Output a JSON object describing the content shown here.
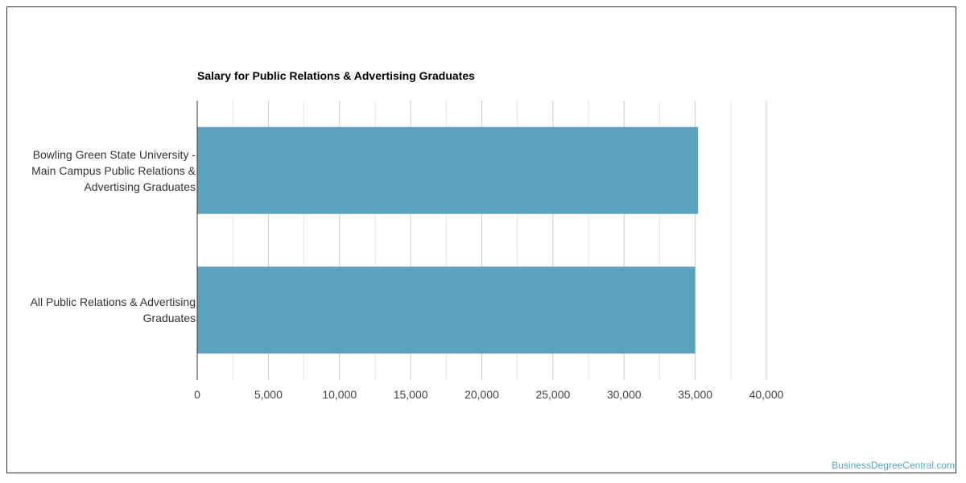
{
  "chart_data": {
    "type": "bar",
    "orientation": "horizontal",
    "title": "Salary for Public Relations & Advertising Graduates",
    "categories": [
      "Bowling Green State University - Main Campus Public Relations & Advertising Graduates",
      "All Public Relations & Advertising Graduates"
    ],
    "category_label_lines": [
      [
        "Bowling Green State University -",
        "Main Campus Public Relations &",
        "Advertising Graduates"
      ],
      [
        "All Public Relations & Advertising",
        "Graduates"
      ]
    ],
    "values": [
      35200,
      35000
    ],
    "xlim": [
      0,
      40000
    ],
    "xticks": [
      0,
      5000,
      10000,
      15000,
      20000,
      25000,
      30000,
      35000,
      40000
    ],
    "xtick_labels": [
      "0",
      "5,000",
      "10,000",
      "15,000",
      "20,000",
      "25,000",
      "30,000",
      "35,000",
      "40,000"
    ],
    "grid": true,
    "bar_color": "#5ca2bf",
    "legend": "none"
  },
  "watermark": "BusinessDegreeCentral.com"
}
